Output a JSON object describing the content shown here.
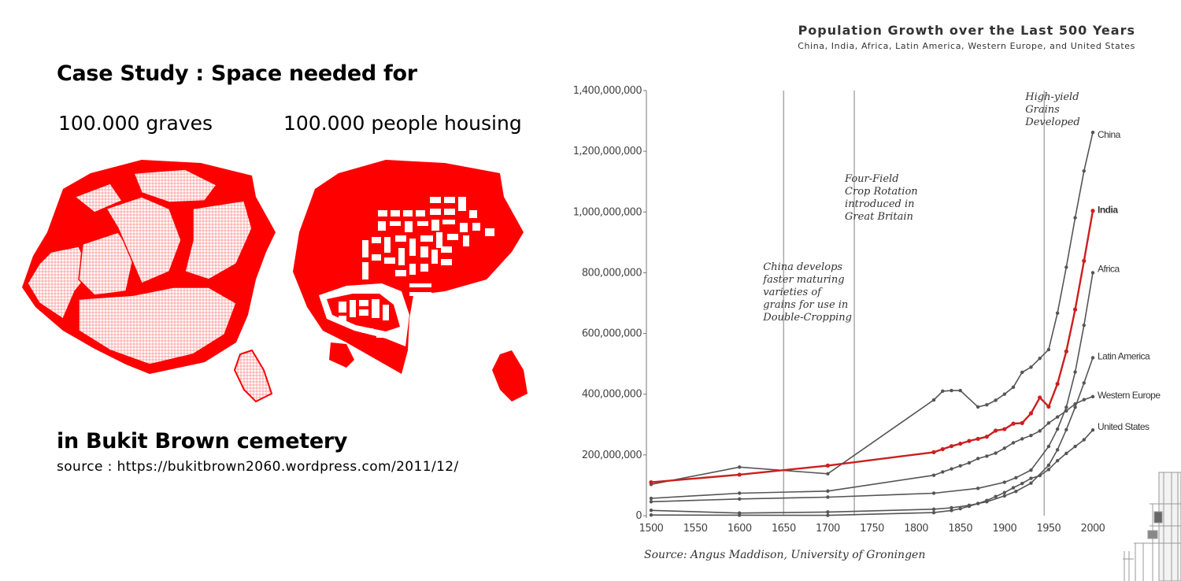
{
  "left": {
    "title": "Case Study : Space needed for",
    "label_graves": "100.000 graves",
    "label_housing": "100.000 people housing",
    "subtitle": "in Bukit Brown cemetery",
    "source": "source : https://bukitbrown2060.wordpress.com/2011/12/"
  },
  "colors": {
    "map_red": "#ff0000",
    "india": "#cc1f1f",
    "series": "#555555"
  },
  "chart_data": {
    "type": "line",
    "title": "Population Growth over the Last 500 Years",
    "subtitle": "China, India, Africa, Latin America, Western Europe, and United States",
    "source": "Source: Angus Maddison, University of Groningen",
    "xlabel": "",
    "ylabel": "",
    "xlim": [
      1500,
      2000
    ],
    "ylim": [
      0,
      1400000000
    ],
    "x_ticks": [
      "1500",
      "1550",
      "1600",
      "1650",
      "1700",
      "1750",
      "1800",
      "1850",
      "1900",
      "1950",
      "2000"
    ],
    "y_ticks": [
      "0",
      "200,000,000",
      "400,000,000",
      "600,000,000",
      "800,000,000",
      "1,000,000,000",
      "1,200,000,000",
      "1,400,000,000"
    ],
    "grid": false,
    "series": [
      {
        "name": "China",
        "color": "#555555",
        "points": [
          [
            1500,
            103000000
          ],
          [
            1600,
            160000000
          ],
          [
            1700,
            138000000
          ],
          [
            1820,
            381000000
          ],
          [
            1830,
            410000000
          ],
          [
            1840,
            412000000
          ],
          [
            1850,
            412000000
          ],
          [
            1870,
            358000000
          ],
          [
            1880,
            365000000
          ],
          [
            1890,
            380000000
          ],
          [
            1900,
            400000000
          ],
          [
            1910,
            423000000
          ],
          [
            1920,
            472000000
          ],
          [
            1930,
            489000000
          ],
          [
            1940,
            518000000
          ],
          [
            1950,
            547000000
          ],
          [
            1960,
            667000000
          ],
          [
            1970,
            818000000
          ],
          [
            1980,
            981000000
          ],
          [
            1990,
            1135000000
          ],
          [
            2000,
            1262000000
          ]
        ]
      },
      {
        "name": "India",
        "color": "#cc1f1f",
        "points": [
          [
            1500,
            110000000
          ],
          [
            1600,
            135000000
          ],
          [
            1700,
            165000000
          ],
          [
            1820,
            209000000
          ],
          [
            1830,
            219000000
          ],
          [
            1840,
            229000000
          ],
          [
            1850,
            237000000
          ],
          [
            1860,
            246000000
          ],
          [
            1870,
            253000000
          ],
          [
            1880,
            260000000
          ],
          [
            1890,
            280000000
          ],
          [
            1900,
            285000000
          ],
          [
            1910,
            303000000
          ],
          [
            1920,
            305000000
          ],
          [
            1930,
            337000000
          ],
          [
            1940,
            389000000
          ],
          [
            1950,
            359000000
          ],
          [
            1960,
            434000000
          ],
          [
            1970,
            541000000
          ],
          [
            1980,
            679000000
          ],
          [
            1990,
            839000000
          ],
          [
            2000,
            1004000000
          ]
        ]
      },
      {
        "name": "Africa",
        "color": "#555555",
        "points": [
          [
            1500,
            46000000
          ],
          [
            1600,
            55000000
          ],
          [
            1700,
            61000000
          ],
          [
            1820,
            74000000
          ],
          [
            1870,
            90000000
          ],
          [
            1900,
            110000000
          ],
          [
            1913,
            125000000
          ],
          [
            1930,
            150000000
          ],
          [
            1950,
            228000000
          ],
          [
            1960,
            285000000
          ],
          [
            1970,
            357000000
          ],
          [
            1980,
            473000000
          ],
          [
            1990,
            627000000
          ],
          [
            2000,
            800000000
          ]
        ]
      },
      {
        "name": "Latin America",
        "color": "#555555",
        "points": [
          [
            1500,
            17500000
          ],
          [
            1600,
            8600000
          ],
          [
            1700,
            12000000
          ],
          [
            1820,
            21200000
          ],
          [
            1840,
            26000000
          ],
          [
            1860,
            34000000
          ],
          [
            1870,
            40000000
          ],
          [
            1880,
            46000000
          ],
          [
            1900,
            65000000
          ],
          [
            1913,
            80000000
          ],
          [
            1930,
            107000000
          ],
          [
            1950,
            166000000
          ],
          [
            1960,
            217000000
          ],
          [
            1970,
            283000000
          ],
          [
            1980,
            357000000
          ],
          [
            1990,
            437000000
          ],
          [
            2000,
            520000000
          ]
        ]
      },
      {
        "name": "Western Europe",
        "color": "#555555",
        "points": [
          [
            1500,
            57000000
          ],
          [
            1600,
            74000000
          ],
          [
            1700,
            81000000
          ],
          [
            1820,
            133000000
          ],
          [
            1830,
            144000000
          ],
          [
            1840,
            154000000
          ],
          [
            1850,
            164000000
          ],
          [
            1860,
            174000000
          ],
          [
            1870,
            188000000
          ],
          [
            1880,
            196000000
          ],
          [
            1890,
            206000000
          ],
          [
            1900,
            222000000
          ],
          [
            1910,
            240000000
          ],
          [
            1920,
            253000000
          ],
          [
            1930,
            264000000
          ],
          [
            1940,
            279000000
          ],
          [
            1950,
            305000000
          ],
          [
            1960,
            325000000
          ],
          [
            1970,
            345000000
          ],
          [
            1980,
            368000000
          ],
          [
            1990,
            382000000
          ],
          [
            2000,
            392000000
          ]
        ]
      },
      {
        "name": "United States",
        "color": "#555555",
        "points": [
          [
            1500,
            2000000
          ],
          [
            1600,
            1500000
          ],
          [
            1700,
            1000000
          ],
          [
            1820,
            10000000
          ],
          [
            1840,
            17000000
          ],
          [
            1850,
            23000000
          ],
          [
            1860,
            31000000
          ],
          [
            1870,
            40000000
          ],
          [
            1880,
            50000000
          ],
          [
            1890,
            63000000
          ],
          [
            1900,
            76000000
          ],
          [
            1910,
            92000000
          ],
          [
            1920,
            106000000
          ],
          [
            1930,
            123000000
          ],
          [
            1940,
            132000000
          ],
          [
            1950,
            152000000
          ],
          [
            1960,
            181000000
          ],
          [
            1970,
            205000000
          ],
          [
            1980,
            228000000
          ],
          [
            1990,
            250000000
          ],
          [
            2000,
            282000000
          ]
        ]
      }
    ],
    "markers": [
      1650,
      1730,
      1945
    ],
    "annotations": [
      {
        "x": 1650,
        "lines": [
          "China develops",
          "faster maturing",
          "varieties of",
          "grains for use in",
          "Double-Cropping"
        ]
      },
      {
        "x": 1730,
        "lines": [
          "Four-Field",
          "Crop Rotation",
          "introduced in",
          "Great Britain"
        ]
      },
      {
        "x": 1945,
        "lines": [
          "High-yield",
          "Grains",
          "Developed"
        ]
      }
    ]
  }
}
